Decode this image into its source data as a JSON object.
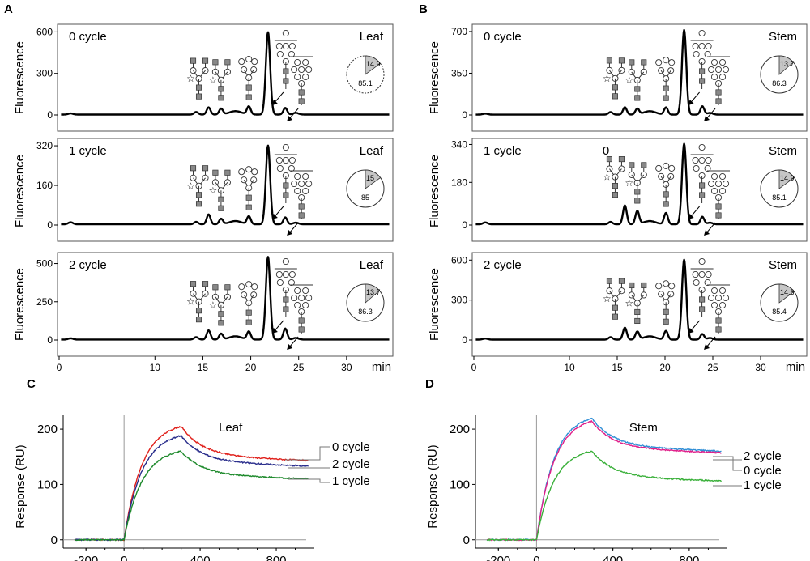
{
  "chart_data": [
    {
      "panel": "A",
      "type": "line",
      "xlabel": "min",
      "ylabel": "Fluorescence",
      "xlim": [
        0,
        35
      ],
      "xticks": [
        "0",
        "10",
        "15",
        "20",
        "25",
        "30"
      ],
      "subplots": [
        {
          "title": "0 cycle",
          "sample": "Leaf",
          "ylim": [
            0,
            620
          ],
          "yticks": [
            "0",
            "300",
            "600"
          ],
          "peaks": [
            [
              15.6,
              52
            ],
            [
              16.9,
              42
            ],
            [
              19.8,
              58
            ],
            [
              21.8,
              595
            ],
            [
              23.6,
              48
            ]
          ],
          "pie": {
            "small": "14.9",
            "large": "85.1"
          }
        },
        {
          "title": "1 cycle",
          "sample": "Leaf",
          "ylim": [
            0,
            330
          ],
          "yticks": [
            "0",
            "160",
            "320"
          ],
          "peaks": [
            [
              15.6,
              40
            ],
            [
              16.9,
              22
            ],
            [
              19.8,
              32
            ],
            [
              21.8,
              318
            ],
            [
              23.6,
              28
            ]
          ],
          "pie": {
            "small": "15",
            "large": "85"
          }
        },
        {
          "title": "2 cycle",
          "sample": "Leaf",
          "ylim": [
            0,
            540
          ],
          "yticks": [
            "0",
            "250",
            "500"
          ],
          "peaks": [
            [
              15.6,
              60
            ],
            [
              16.9,
              38
            ],
            [
              19.8,
              52
            ],
            [
              21.8,
              540
            ],
            [
              23.6,
              72
            ]
          ],
          "pie": {
            "small": "13.7",
            "large": "86.3"
          }
        }
      ]
    },
    {
      "panel": "B",
      "type": "line",
      "xlabel": "min",
      "ylabel": "Fluorescence",
      "xlim": [
        0,
        35
      ],
      "xticks": [
        "0",
        "10",
        "15",
        "20",
        "25",
        "30"
      ],
      "subplots": [
        {
          "title": "0 cycle",
          "sample": "Stem",
          "ylim": [
            0,
            720
          ],
          "yticks": [
            "0",
            "350",
            "700"
          ],
          "peaks": [
            [
              15.8,
              62
            ],
            [
              17.1,
              48
            ],
            [
              20.1,
              60
            ],
            [
              22.0,
              710
            ],
            [
              23.9,
              70
            ]
          ],
          "pie": {
            "small": "13.7",
            "large": "86.3"
          }
        },
        {
          "title": "1 cycle",
          "sample": "Stem",
          "ylim": [
            0,
            345
          ],
          "yticks": [
            "0",
            "180",
            "340"
          ],
          "peaks": [
            [
              15.8,
              80
            ],
            [
              17.1,
              55
            ],
            [
              20.1,
              48
            ],
            [
              22.0,
              340
            ],
            [
              23.9,
              32
            ]
          ],
          "pie": {
            "small": "14.9",
            "large": "85.1"
          },
          "annotation": "0"
        },
        {
          "title": "2 cycle",
          "sample": "Stem",
          "ylim": [
            0,
            620
          ],
          "yticks": [
            "0",
            "300",
            "600"
          ],
          "peaks": [
            [
              15.8,
              90
            ],
            [
              17.1,
              58
            ],
            [
              20.1,
              65
            ],
            [
              22.0,
              600
            ],
            [
              23.9,
              42
            ]
          ],
          "pie": {
            "small": "14.6",
            "large": "85.4"
          }
        }
      ]
    },
    {
      "panel": "C",
      "type": "line",
      "title": "Leaf",
      "xlabel": "",
      "ylabel": "Response (RU)",
      "xlim": [
        -320,
        1000
      ],
      "ylim": [
        -15,
        225
      ],
      "xticks": [
        "-200",
        "0",
        "400",
        "800"
      ],
      "yticks": [
        "0",
        "100",
        "200"
      ],
      "injection_end": 300,
      "dissociation_end": 970,
      "series": [
        {
          "name": "0 cycle",
          "color": "#e0201b",
          "peak": 205,
          "end": 143
        },
        {
          "name": "2 cycle",
          "color": "#2a2e8c",
          "peak": 188,
          "end": 133
        },
        {
          "name": "1 cycle",
          "color": "#1e8a2c",
          "peak": 160,
          "end": 110
        }
      ]
    },
    {
      "panel": "D",
      "type": "line",
      "title": "Stem",
      "xlabel": "",
      "ylabel": "Response (RU)",
      "xlim": [
        -320,
        1000
      ],
      "ylim": [
        -15,
        225
      ],
      "xticks": [
        "-200",
        "0",
        "400",
        "800"
      ],
      "yticks": [
        "0",
        "100",
        "200"
      ],
      "injection_end": 290,
      "dissociation_end": 970,
      "series": [
        {
          "name": "2 cycle",
          "color": "#2f8fd6",
          "peak": 220,
          "end": 160
        },
        {
          "name": "0 cycle",
          "color": "#e0208a",
          "peak": 214,
          "end": 157
        },
        {
          "name": "1 cycle",
          "color": "#3ab03a",
          "peak": 160,
          "end": 106
        }
      ]
    }
  ]
}
